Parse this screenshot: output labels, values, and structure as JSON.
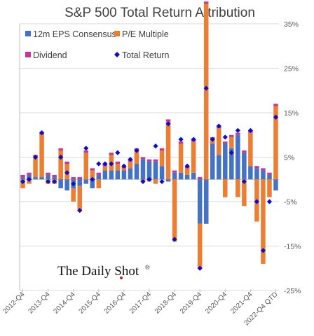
{
  "chart_data": {
    "type": "bar",
    "stacked": true,
    "title": "S&P 500 Total Return Attribution",
    "xlabel": "",
    "ylabel": "",
    "ylim": [
      -25,
      35
    ],
    "y_axis_side": "right",
    "y_ticks": [
      35,
      25,
      15,
      5,
      -5,
      -15,
      -25
    ],
    "y_tick_labels": [
      "35%",
      "25%",
      "15%",
      "5%",
      "-5%",
      "-15%",
      "-25%"
    ],
    "grid": true,
    "legend_position": "top-left",
    "categories": [
      "2012-Q4",
      "2013-Q1",
      "2013-Q2",
      "2013-Q3",
      "2013-Q4",
      "2014-Q1",
      "2014-Q2",
      "2014-Q3",
      "2014-Q4",
      "2015-Q1",
      "2015-Q2",
      "2015-Q3",
      "2015-Q4",
      "2016-Q1",
      "2016-Q2",
      "2016-Q3",
      "2016-Q4",
      "2017-Q1",
      "2017-Q2",
      "2017-Q3",
      "2017-Q4",
      "2018-Q1",
      "2018-Q2",
      "2018-Q3",
      "2018-Q4",
      "2019-Q1",
      "2019-Q2",
      "2019-Q3",
      "2019-Q4",
      "2020-Q1",
      "2020-Q2",
      "2020-Q3",
      "2020-Q4",
      "2021-Q1",
      "2021-Q2",
      "2021-Q3",
      "2021-Q4",
      "2022-Q1",
      "2022-Q2",
      "2022-Q3",
      "2022-Q4 QTD"
    ],
    "x_tick_labels": [
      "2012-Q4",
      "2013-Q4",
      "2014-Q4",
      "2015-Q4",
      "2016-Q4",
      "2017-Q4",
      "2018-Q4",
      "2019-Q4",
      "2020-Q4",
      "2021-Q4",
      "2022-Q4 QTD"
    ],
    "series": [
      {
        "name": "12m EPS Consensus",
        "color": "#4472c4",
        "values": [
          0.5,
          1.0,
          0.5,
          0.5,
          1.0,
          0.5,
          -2.0,
          -2.5,
          -2.0,
          -1.5,
          -1.0,
          -2.0,
          1.0,
          2.0,
          2.0,
          2.0,
          2.0,
          2.5,
          3.5,
          4.5,
          4.0,
          4.0,
          3.0,
          -0.5,
          1.5,
          1.5,
          1.0,
          1.5,
          -10.0,
          -10.0,
          8.0,
          5.5,
          8.0,
          7.0,
          10.0,
          6.0,
          3.0,
          2.5,
          2.0,
          1.0,
          -2.5
        ]
      },
      {
        "name": "P/E Multiple",
        "color": "#ed7d31",
        "values": [
          -2.0,
          -1.0,
          4.5,
          9.5,
          -1.0,
          -1.0,
          6.5,
          3.5,
          -3.0,
          -5.5,
          6.0,
          2.0,
          -2.0,
          1.0,
          3.5,
          1.5,
          0.5,
          1.5,
          3.0,
          -0.5,
          -0.5,
          -1.0,
          3.5,
          13.0,
          -14.0,
          6.5,
          1.5,
          7.0,
          -10.0,
          39.5,
          1.0,
          6.0,
          -4.0,
          2.5,
          -4.0,
          -6.0,
          7.5,
          -9.5,
          -19.0,
          -4.0,
          16.5
        ]
      },
      {
        "name": "Dividend",
        "color": "#cc3399",
        "values": [
          0.5,
          0.5,
          0.5,
          0.5,
          0.5,
          0.5,
          0.5,
          0.5,
          0.5,
          0.5,
          0.5,
          0.5,
          0.5,
          0.5,
          0.5,
          0.5,
          0.5,
          0.5,
          0.5,
          0.5,
          0.5,
          0.5,
          0.5,
          0.5,
          0.5,
          0.5,
          0.5,
          0.5,
          0.5,
          0.5,
          0.5,
          0.5,
          0.5,
          0.5,
          0.5,
          0.5,
          0.5,
          0.5,
          0.5,
          0.5,
          0.5
        ]
      }
    ],
    "total_return": {
      "name": "Total Return",
      "color": "#0d0dcc",
      "values": [
        -0.5,
        0.0,
        5.0,
        10.5,
        -0.5,
        -0.5,
        5.0,
        1.5,
        -1.0,
        -7.0,
        7.0,
        0.0,
        3.5,
        3.5,
        3.5,
        6.0,
        3.0,
        4.5,
        6.5,
        -0.5,
        0.0,
        7.5,
        -0.5,
        12.5,
        -13.5,
        9.0,
        3.0,
        9.0,
        -20.0,
        20.5,
        9.0,
        12.0,
        9.5,
        6.0,
        11.0,
        -0.5,
        11.0,
        -5.0,
        -16.0,
        -5.0,
        14.0
      ]
    }
  },
  "logo": {
    "text": "The Daily Shot",
    "mark": "®"
  }
}
